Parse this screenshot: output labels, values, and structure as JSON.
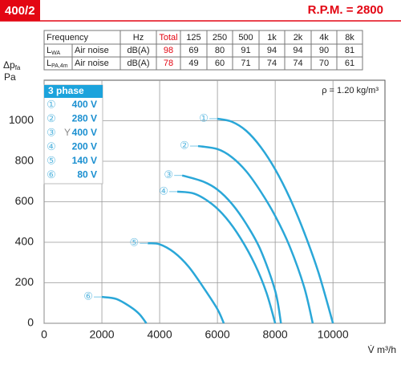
{
  "header": {
    "model": "400/2",
    "rpm": "R.P.M. = 2800"
  },
  "table": {
    "columns": [
      "Frequency",
      "Hz",
      "Total",
      "125",
      "250",
      "500",
      "1k",
      "2k",
      "4k",
      "8k"
    ],
    "rows": [
      {
        "label": "L",
        "sub": "WA",
        "kind": "Air noise",
        "unit": "dB(A)",
        "values": [
          98,
          69,
          80,
          91,
          94,
          94,
          90,
          81
        ]
      },
      {
        "label": "L",
        "sub": "PA,4m",
        "kind": "Air noise",
        "unit": "dB(A)",
        "values": [
          78,
          49,
          60,
          71,
          74,
          74,
          70,
          61
        ]
      }
    ]
  },
  "chart_data": {
    "type": "line",
    "y_label": "Δp",
    "y_label_sub": "fa",
    "y_unit": "Pa",
    "x_label": "V̇ m³/h",
    "annotation": "ρ = 1.20 kg/m³",
    "legend_title": "3 phase",
    "legend": "upper left",
    "grid": true,
    "xlim": [
      0,
      11800
    ],
    "ylim": [
      0,
      1200
    ],
    "xticks": [
      0,
      2000,
      4000,
      6000,
      8000,
      10000
    ],
    "yticks": [
      0,
      200,
      400,
      600,
      800,
      1000
    ],
    "series": [
      {
        "marker": "①",
        "name": "400 V",
        "color": "#2aa7d8",
        "x": [
          6000,
          6500,
          7000,
          7500,
          8000,
          8500,
          9000,
          9500,
          10000
        ],
        "values": [
          1010,
          995,
          950,
          870,
          760,
          620,
          450,
          250,
          0
        ]
      },
      {
        "marker": "②",
        "name": "280 V",
        "color": "#2aa7d8",
        "x": [
          5330,
          6000,
          6500,
          7000,
          7500,
          8000,
          8500,
          9000,
          9300
        ],
        "values": [
          875,
          860,
          820,
          750,
          650,
          530,
          380,
          180,
          0
        ]
      },
      {
        "marker": "③",
        "star": "Y",
        "name": "400 V",
        "color": "#2aa7d8",
        "x": [
          4780,
          5500,
          6000,
          6500,
          7000,
          7500,
          8000,
          8200
        ],
        "values": [
          730,
          700,
          660,
          590,
          490,
          360,
          160,
          0
        ]
      },
      {
        "marker": "④",
        "name": "200 V",
        "color": "#2aa7d8",
        "x": [
          4610,
          5200,
          5800,
          6300,
          6800,
          7300,
          7700,
          8000
        ],
        "values": [
          650,
          640,
          590,
          520,
          420,
          290,
          150,
          0
        ]
      },
      {
        "marker": "⑤",
        "name": "140 V",
        "color": "#2aa7d8",
        "x": [
          3590,
          4000,
          4500,
          5000,
          5500,
          6000,
          6220
        ],
        "values": [
          395,
          390,
          350,
          280,
          180,
          70,
          0
        ]
      },
      {
        "marker": "⑥",
        "name": "80 V",
        "color": "#2aa7d8",
        "x": [
          2000,
          2500,
          3000,
          3300,
          3540
        ],
        "values": [
          130,
          120,
          80,
          45,
          0
        ]
      }
    ]
  }
}
